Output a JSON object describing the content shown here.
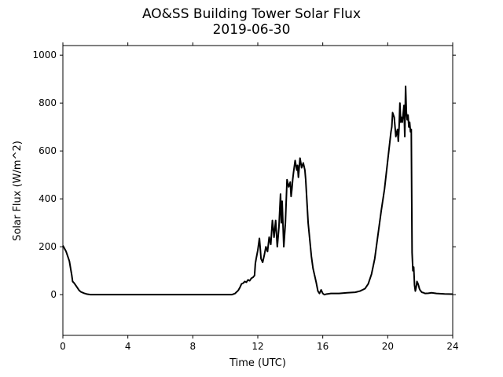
{
  "chart_data": {
    "type": "line",
    "title": "AO&SS Building Tower Solar Flux",
    "subtitle": "2019-06-30",
    "xlabel": "Time (UTC)",
    "ylabel": "Solar Flux (W/m^2)",
    "xlim": [
      0,
      24
    ],
    "ylim": [
      -170,
      1040
    ],
    "xticks": [
      0,
      4,
      8,
      12,
      16,
      20,
      24
    ],
    "yticks": [
      0,
      200,
      400,
      600,
      800,
      1000
    ],
    "grid": false,
    "legend": "none",
    "series": [
      {
        "color": "#000000",
        "x": [
          0,
          0.2,
          0.4,
          0.5,
          0.55,
          0.6,
          0.7,
          0.8,
          0.9,
          1.0,
          1.1,
          1.3,
          1.5,
          1.7,
          2.0,
          3.0,
          5.0,
          7.0,
          9.0,
          10.0,
          10.4,
          10.6,
          10.8,
          10.9,
          11.0,
          11.1,
          11.2,
          11.3,
          11.4,
          11.5,
          11.6,
          11.7,
          11.8,
          11.85,
          11.9,
          12.0,
          12.1,
          12.15,
          12.2,
          12.3,
          12.4,
          12.5,
          12.6,
          12.7,
          12.8,
          12.9,
          13.0,
          13.1,
          13.2,
          13.3,
          13.4,
          13.45,
          13.5,
          13.6,
          13.65,
          13.7,
          13.8,
          13.9,
          14.0,
          14.05,
          14.1,
          14.15,
          14.2,
          14.3,
          14.4,
          14.45,
          14.5,
          14.6,
          14.7,
          14.8,
          14.9,
          14.95,
          15.0,
          15.1,
          15.2,
          15.3,
          15.4,
          15.5,
          15.6,
          15.7,
          15.8,
          15.9,
          16.0,
          16.1,
          16.2,
          16.3,
          16.5,
          17.0,
          17.5,
          18.0,
          18.3,
          18.6,
          18.8,
          19.0,
          19.2,
          19.4,
          19.6,
          19.8,
          20.0,
          20.1,
          20.2,
          20.25,
          20.3,
          20.4,
          20.5,
          20.6,
          20.65,
          20.7,
          20.75,
          20.8,
          20.85,
          20.9,
          21.0,
          21.05,
          21.1,
          21.15,
          21.2,
          21.25,
          21.3,
          21.35,
          21.4,
          21.45,
          21.5,
          21.55,
          21.6,
          21.65,
          21.7,
          21.75,
          21.8,
          21.85,
          21.9,
          21.95,
          22.0,
          22.1,
          22.2,
          22.3,
          22.5,
          22.7,
          23.0,
          23.5,
          24.0
        ],
        "values": [
          205,
          180,
          140,
          100,
          80,
          55,
          48,
          38,
          28,
          18,
          12,
          6,
          2,
          0,
          0,
          0,
          0,
          0,
          0,
          0,
          0,
          5,
          18,
          30,
          45,
          48,
          55,
          52,
          62,
          58,
          68,
          72,
          80,
          130,
          150,
          185,
          235,
          195,
          150,
          135,
          165,
          200,
          180,
          240,
          210,
          310,
          240,
          310,
          200,
          280,
          420,
          300,
          390,
          200,
          250,
          300,
          480,
          450,
          470,
          410,
          440,
          480,
          510,
          560,
          520,
          540,
          490,
          570,
          530,
          550,
          520,
          480,
          420,
          300,
          230,
          160,
          110,
          80,
          50,
          15,
          5,
          20,
          5,
          0,
          2,
          3,
          5,
          5,
          8,
          10,
          15,
          25,
          45,
          85,
          150,
          250,
          350,
          440,
          560,
          620,
          680,
          700,
          760,
          740,
          660,
          690,
          640,
          700,
          800,
          720,
          740,
          720,
          790,
          660,
          870,
          760,
          730,
          750,
          700,
          720,
          680,
          690,
          175,
          100,
          115,
          40,
          15,
          30,
          55,
          48,
          38,
          25,
          18,
          10,
          8,
          5,
          6,
          8,
          5,
          3,
          2
        ]
      }
    ]
  }
}
